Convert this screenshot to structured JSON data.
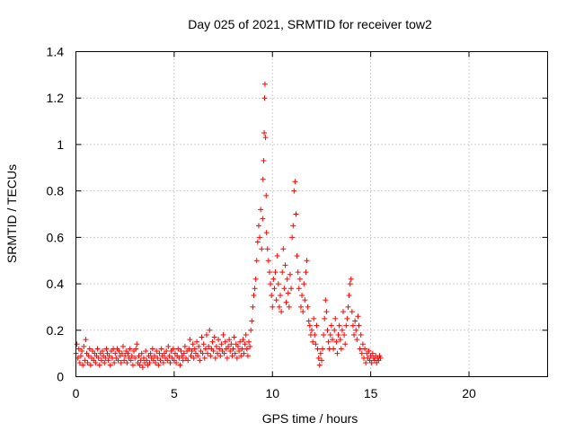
{
  "chart_data": {
    "type": "scatter",
    "title": "Day 025 of 2021, SRMTID for receiver tow2",
    "xlabel": "GPS time / hours",
    "ylabel": "SRMTID / TECUs",
    "xlim": [
      0,
      24
    ],
    "ylim": [
      0,
      1.4
    ],
    "xticks": [
      0,
      5,
      10,
      15,
      20
    ],
    "yticks": [
      0,
      0.2,
      0.4,
      0.6,
      0.8,
      1,
      1.2,
      1.4
    ],
    "xtick_labels": [
      "0",
      "5",
      "10",
      "15",
      "20"
    ],
    "ytick_labels": [
      "0",
      "0.2",
      "0.4",
      "0.6",
      "0.8",
      "1",
      "1.2",
      "1.4"
    ],
    "grid": true,
    "marker": "+",
    "series": [
      {
        "name": "tow2",
        "color": "#ff0000",
        "points": [
          [
            0.0,
            0.1
          ],
          [
            0.05,
            0.14
          ],
          [
            0.1,
            0.08
          ],
          [
            0.15,
            0.12
          ],
          [
            0.2,
            0.06
          ],
          [
            0.25,
            0.09
          ],
          [
            0.3,
            0.11
          ],
          [
            0.35,
            0.05
          ],
          [
            0.4,
            0.13
          ],
          [
            0.45,
            0.07
          ],
          [
            0.5,
            0.16
          ],
          [
            0.55,
            0.1
          ],
          [
            0.6,
            0.06
          ],
          [
            0.65,
            0.09
          ],
          [
            0.7,
            0.12
          ],
          [
            0.75,
            0.05
          ],
          [
            0.8,
            0.08
          ],
          [
            0.85,
            0.11
          ],
          [
            0.9,
            0.07
          ],
          [
            0.95,
            0.1
          ],
          [
            1.0,
            0.06
          ],
          [
            1.05,
            0.09
          ],
          [
            1.1,
            0.12
          ],
          [
            1.15,
            0.08
          ],
          [
            1.2,
            0.05
          ],
          [
            1.25,
            0.1
          ],
          [
            1.3,
            0.07
          ],
          [
            1.35,
            0.11
          ],
          [
            1.4,
            0.09
          ],
          [
            1.45,
            0.06
          ],
          [
            1.5,
            0.08
          ],
          [
            1.55,
            0.12
          ],
          [
            1.6,
            0.1
          ],
          [
            1.65,
            0.07
          ],
          [
            1.7,
            0.09
          ],
          [
            1.75,
            0.05
          ],
          [
            1.8,
            0.11
          ],
          [
            1.85,
            0.08
          ],
          [
            1.9,
            0.12
          ],
          [
            1.95,
            0.06
          ],
          [
            2.0,
            0.1
          ],
          [
            2.05,
            0.08
          ],
          [
            2.1,
            0.12
          ],
          [
            2.15,
            0.07
          ],
          [
            2.2,
            0.11
          ],
          [
            2.25,
            0.09
          ],
          [
            2.3,
            0.06
          ],
          [
            2.35,
            0.1
          ],
          [
            2.4,
            0.13
          ],
          [
            2.45,
            0.07
          ],
          [
            2.5,
            0.09
          ],
          [
            2.55,
            0.11
          ],
          [
            2.6,
            0.06
          ],
          [
            2.65,
            0.1
          ],
          [
            2.7,
            0.08
          ],
          [
            2.75,
            0.12
          ],
          [
            2.8,
            0.07
          ],
          [
            2.85,
            0.09
          ],
          [
            2.9,
            0.05
          ],
          [
            2.95,
            0.11
          ],
          [
            3.0,
            0.08
          ],
          [
            3.05,
            0.12
          ],
          [
            3.1,
            0.14
          ],
          [
            3.15,
            0.06
          ],
          [
            3.2,
            0.09
          ],
          [
            3.25,
            0.05
          ],
          [
            3.3,
            0.07
          ],
          [
            3.35,
            0.1
          ],
          [
            3.4,
            0.04
          ],
          [
            3.45,
            0.08
          ],
          [
            3.5,
            0.06
          ],
          [
            3.55,
            0.11
          ],
          [
            3.6,
            0.07
          ],
          [
            3.65,
            0.05
          ],
          [
            3.7,
            0.09
          ],
          [
            3.75,
            0.06
          ],
          [
            3.8,
            0.1
          ],
          [
            3.85,
            0.08
          ],
          [
            3.9,
            0.12
          ],
          [
            3.95,
            0.07
          ],
          [
            4.0,
            0.09
          ],
          [
            4.05,
            0.06
          ],
          [
            4.1,
            0.11
          ],
          [
            4.15,
            0.08
          ],
          [
            4.2,
            0.05
          ],
          [
            4.25,
            0.1
          ],
          [
            4.3,
            0.07
          ],
          [
            4.35,
            0.12
          ],
          [
            4.4,
            0.09
          ],
          [
            4.45,
            0.06
          ],
          [
            4.5,
            0.1
          ],
          [
            4.55,
            0.08
          ],
          [
            4.6,
            0.11
          ],
          [
            4.65,
            0.07
          ],
          [
            4.7,
            0.13
          ],
          [
            4.75,
            0.09
          ],
          [
            4.8,
            0.06
          ],
          [
            4.85,
            0.11
          ],
          [
            4.9,
            0.08
          ],
          [
            4.95,
            0.12
          ],
          [
            5.0,
            0.07
          ],
          [
            5.05,
            0.1
          ],
          [
            5.1,
            0.06
          ],
          [
            5.15,
            0.09
          ],
          [
            5.2,
            0.12
          ],
          [
            5.25,
            0.08
          ],
          [
            5.3,
            0.05
          ],
          [
            5.35,
            0.11
          ],
          [
            5.4,
            0.09
          ],
          [
            5.45,
            0.07
          ],
          [
            5.5,
            0.1
          ],
          [
            5.55,
            0.13
          ],
          [
            5.6,
            0.08
          ],
          [
            5.65,
            0.11
          ],
          [
            5.7,
            0.07
          ],
          [
            5.75,
            0.12
          ],
          [
            5.8,
            0.16
          ],
          [
            5.85,
            0.09
          ],
          [
            5.9,
            0.11
          ],
          [
            5.95,
            0.14
          ],
          [
            6.0,
            0.08
          ],
          [
            6.05,
            0.12
          ],
          [
            6.1,
            0.1
          ],
          [
            6.15,
            0.15
          ],
          [
            6.2,
            0.09
          ],
          [
            6.25,
            0.13
          ],
          [
            6.3,
            0.07
          ],
          [
            6.35,
            0.11
          ],
          [
            6.4,
            0.17
          ],
          [
            6.45,
            0.1
          ],
          [
            6.5,
            0.14
          ],
          [
            6.55,
            0.08
          ],
          [
            6.6,
            0.12
          ],
          [
            6.65,
            0.18
          ],
          [
            6.7,
            0.1
          ],
          [
            6.75,
            0.13
          ],
          [
            6.8,
            0.2
          ],
          [
            6.85,
            0.09
          ],
          [
            6.9,
            0.12
          ],
          [
            6.95,
            0.15
          ],
          [
            7.0,
            0.11
          ],
          [
            7.05,
            0.17
          ],
          [
            7.1,
            0.08
          ],
          [
            7.15,
            0.13
          ],
          [
            7.2,
            0.1
          ],
          [
            7.25,
            0.16
          ],
          [
            7.3,
            0.12
          ],
          [
            7.35,
            0.09
          ],
          [
            7.4,
            0.14
          ],
          [
            7.45,
            0.11
          ],
          [
            7.5,
            0.18
          ],
          [
            7.55,
            0.1
          ],
          [
            7.6,
            0.15
          ],
          [
            7.65,
            0.12
          ],
          [
            7.7,
            0.08
          ],
          [
            7.75,
            0.13
          ],
          [
            7.8,
            0.16
          ],
          [
            7.85,
            0.11
          ],
          [
            7.9,
            0.14
          ],
          [
            7.95,
            0.09
          ],
          [
            8.0,
            0.12
          ],
          [
            8.05,
            0.17
          ],
          [
            8.1,
            0.1
          ],
          [
            8.15,
            0.14
          ],
          [
            8.2,
            0.08
          ],
          [
            8.25,
            0.13
          ],
          [
            8.3,
            0.11
          ],
          [
            8.35,
            0.15
          ],
          [
            8.4,
            0.09
          ],
          [
            8.45,
            0.12
          ],
          [
            8.5,
            0.16
          ],
          [
            8.55,
            0.1
          ],
          [
            8.6,
            0.14
          ],
          [
            8.65,
            0.18
          ],
          [
            8.7,
            0.12
          ],
          [
            8.75,
            0.09
          ],
          [
            8.8,
            0.15
          ],
          [
            8.85,
            0.13
          ],
          [
            8.9,
            0.2
          ],
          [
            8.95,
            0.24
          ],
          [
            9.0,
            0.3
          ],
          [
            9.05,
            0.35
          ],
          [
            9.1,
            0.38
          ],
          [
            9.15,
            0.42
          ],
          [
            9.2,
            0.5
          ],
          [
            9.25,
            0.58
          ],
          [
            9.3,
            0.65
          ],
          [
            9.35,
            0.6
          ],
          [
            9.4,
            0.72
          ],
          [
            9.45,
            0.55
          ],
          [
            9.5,
            0.68
          ],
          [
            9.52,
            0.85
          ],
          [
            9.55,
            0.93
          ],
          [
            9.58,
            1.05
          ],
          [
            9.6,
            1.2
          ],
          [
            9.62,
            1.26
          ],
          [
            9.65,
            1.03
          ],
          [
            9.68,
            0.78
          ],
          [
            9.7,
            0.62
          ],
          [
            9.75,
            0.55
          ],
          [
            9.8,
            0.5
          ],
          [
            9.85,
            0.45
          ],
          [
            9.9,
            0.4
          ],
          [
            9.95,
            0.35
          ],
          [
            10.0,
            0.3
          ],
          [
            10.05,
            0.42
          ],
          [
            10.1,
            0.38
          ],
          [
            10.15,
            0.45
          ],
          [
            10.2,
            0.33
          ],
          [
            10.25,
            0.52
          ],
          [
            10.3,
            0.4
          ],
          [
            10.35,
            0.3
          ],
          [
            10.4,
            0.35
          ],
          [
            10.45,
            0.28
          ],
          [
            10.5,
            0.45
          ],
          [
            10.55,
            0.55
          ],
          [
            10.6,
            0.38
          ],
          [
            10.65,
            0.48
          ],
          [
            10.7,
            0.32
          ],
          [
            10.75,
            0.42
          ],
          [
            10.8,
            0.36
          ],
          [
            10.85,
            0.3
          ],
          [
            10.9,
            0.44
          ],
          [
            10.95,
            0.38
          ],
          [
            11.0,
            0.6
          ],
          [
            11.05,
            0.65
          ],
          [
            11.1,
            0.8
          ],
          [
            11.15,
            0.84
          ],
          [
            11.2,
            0.7
          ],
          [
            11.25,
            0.52
          ],
          [
            11.3,
            0.45
          ],
          [
            11.35,
            0.38
          ],
          [
            11.4,
            0.42
          ],
          [
            11.45,
            0.3
          ],
          [
            11.5,
            0.35
          ],
          [
            11.55,
            0.28
          ],
          [
            11.6,
            0.4
          ],
          [
            11.65,
            0.33
          ],
          [
            11.7,
            0.45
          ],
          [
            11.75,
            0.5
          ],
          [
            11.8,
            0.3
          ],
          [
            11.85,
            0.24
          ],
          [
            11.9,
            0.22
          ],
          [
            11.95,
            0.18
          ],
          [
            12.0,
            0.2
          ],
          [
            12.05,
            0.15
          ],
          [
            12.1,
            0.25
          ],
          [
            12.15,
            0.18
          ],
          [
            12.2,
            0.14
          ],
          [
            12.25,
            0.22
          ],
          [
            12.3,
            0.12
          ],
          [
            12.35,
            0.08
          ],
          [
            12.4,
            0.05
          ],
          [
            12.45,
            0.1
          ],
          [
            12.5,
            0.07
          ],
          [
            12.55,
            0.12
          ],
          [
            12.6,
            0.18
          ],
          [
            12.65,
            0.25
          ],
          [
            12.7,
            0.33
          ],
          [
            12.75,
            0.28
          ],
          [
            12.8,
            0.2
          ],
          [
            12.85,
            0.15
          ],
          [
            12.9,
            0.12
          ],
          [
            12.95,
            0.18
          ],
          [
            13.0,
            0.22
          ],
          [
            13.05,
            0.16
          ],
          [
            13.1,
            0.12
          ],
          [
            13.15,
            0.2
          ],
          [
            13.2,
            0.25
          ],
          [
            13.25,
            0.15
          ],
          [
            13.3,
            0.1
          ],
          [
            13.35,
            0.18
          ],
          [
            13.4,
            0.22
          ],
          [
            13.45,
            0.16
          ],
          [
            13.5,
            0.12
          ],
          [
            13.55,
            0.2
          ],
          [
            13.6,
            0.28
          ],
          [
            13.65,
            0.18
          ],
          [
            13.7,
            0.14
          ],
          [
            13.75,
            0.22
          ],
          [
            13.8,
            0.25
          ],
          [
            13.85,
            0.3
          ],
          [
            13.9,
            0.35
          ],
          [
            13.95,
            0.4
          ],
          [
            14.0,
            0.42
          ],
          [
            14.05,
            0.28
          ],
          [
            14.1,
            0.22
          ],
          [
            14.15,
            0.18
          ],
          [
            14.2,
            0.24
          ],
          [
            14.25,
            0.2
          ],
          [
            14.3,
            0.16
          ],
          [
            14.35,
            0.26
          ],
          [
            14.4,
            0.22
          ],
          [
            14.45,
            0.12
          ],
          [
            14.5,
            0.18
          ],
          [
            14.55,
            0.1
          ],
          [
            14.6,
            0.14
          ],
          [
            14.65,
            0.08
          ],
          [
            14.7,
            0.12
          ],
          [
            14.75,
            0.06
          ],
          [
            14.8,
            0.1
          ],
          [
            14.85,
            0.08
          ],
          [
            14.9,
            0.11
          ],
          [
            14.95,
            0.07
          ],
          [
            15.0,
            0.09
          ],
          [
            15.05,
            0.06
          ],
          [
            15.1,
            0.1
          ],
          [
            15.15,
            0.08
          ],
          [
            15.2,
            0.07
          ],
          [
            15.25,
            0.09
          ],
          [
            15.3,
            0.06
          ],
          [
            15.35,
            0.08
          ],
          [
            15.4,
            0.07
          ],
          [
            15.45,
            0.09
          ],
          [
            15.5,
            0.08
          ]
        ]
      }
    ]
  }
}
